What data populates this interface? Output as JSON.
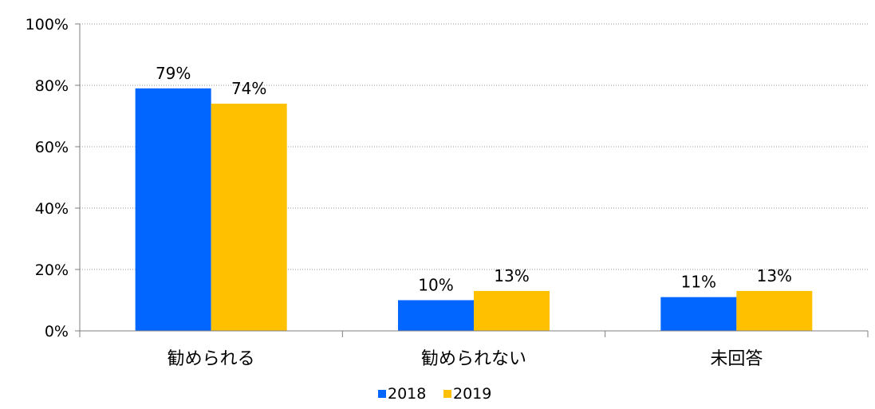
{
  "chart_data": {
    "type": "bar",
    "categories": [
      "勧められる",
      "勧められない",
      "未回答"
    ],
    "series": [
      {
        "name": "2018",
        "values": [
          79,
          10,
          11
        ],
        "color": "#0066ff",
        "data_labels": [
          "79%",
          "10%",
          "11%"
        ]
      },
      {
        "name": "2019",
        "values": [
          74,
          13,
          13
        ],
        "color": "#ffc000",
        "data_labels": [
          "74%",
          "13%",
          "13%"
        ]
      }
    ],
    "ylim": [
      0,
      100
    ],
    "yticks": [
      0,
      20,
      40,
      60,
      80,
      100
    ],
    "ytick_labels": [
      "0%",
      "20%",
      "40%",
      "60%",
      "80%",
      "100%"
    ],
    "title": "",
    "xlabel": "",
    "ylabel": "",
    "grid": "horizontal-dotted",
    "legend": "bottom-center"
  }
}
